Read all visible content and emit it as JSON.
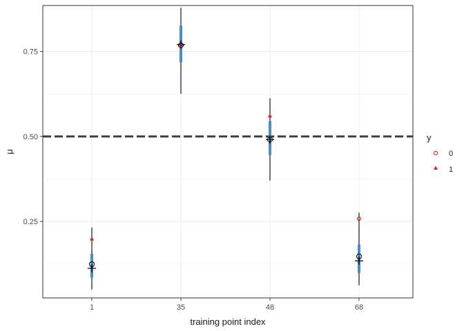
{
  "chart_data": {
    "type": "scatter",
    "title": "",
    "xlabel": "training point index",
    "ylabel": "μ",
    "categories": [
      "1",
      "35",
      "48",
      "68"
    ],
    "yticks": [
      "0.25",
      "0.50",
      "0.75"
    ],
    "ylim": [
      0.025,
      0.885
    ],
    "reference_line": {
      "y": 0.5,
      "style": "dashed",
      "color": "#3d3d3d"
    },
    "grid": true,
    "legend": {
      "title": "y",
      "placement": "right",
      "entries": [
        {
          "label": "0",
          "shape": "open-circle",
          "color": "#e41a1c"
        },
        {
          "label": "1",
          "shape": "filled-triangle",
          "color": "#e41a1c"
        }
      ]
    },
    "intervals": {
      "outer_color": "#000000",
      "inner_color": "#4a8cc4",
      "points": [
        {
          "x": "1",
          "outer": [
            0.05,
            0.232
          ],
          "inner": [
            0.085,
            0.155
          ],
          "mean": 0.124,
          "median": 0.112
        },
        {
          "x": "35",
          "outer": [
            0.625,
            0.878
          ],
          "inner": [
            0.718,
            0.826
          ],
          "mean": 0.768,
          "median": 0.77
        },
        {
          "x": "48",
          "outer": [
            0.37,
            0.612
          ],
          "inner": [
            0.445,
            0.545
          ],
          "mean": 0.491,
          "median": 0.491
        },
        {
          "x": "68",
          "outer": [
            0.062,
            0.276
          ],
          "inner": [
            0.098,
            0.182
          ],
          "mean": 0.147,
          "median": 0.134
        }
      ]
    },
    "observations": [
      {
        "x": "1",
        "y_value": "1",
        "mu": 0.198
      },
      {
        "x": "35",
        "y_value": "0",
        "mu": 0.765
      },
      {
        "x": "48",
        "y_value": "1",
        "mu": 0.56
      },
      {
        "x": "68",
        "y_value": "0",
        "mu": 0.258
      }
    ]
  }
}
